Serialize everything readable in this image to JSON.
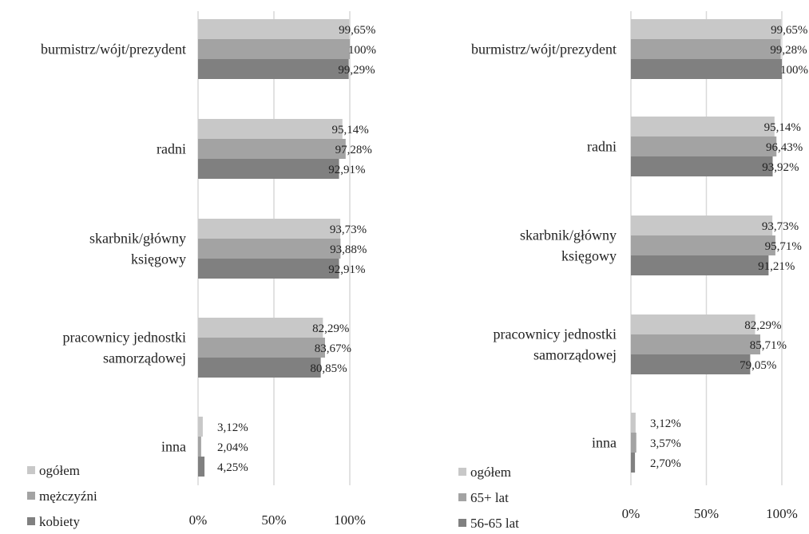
{
  "chart_data": [
    {
      "type": "bar",
      "orientation": "horizontal",
      "categories": [
        "burmistrz/wójt/prezydent",
        "radni",
        "skarbnik/główny księgowy",
        "pracownicy jednostki samorządowej",
        "inna"
      ],
      "category_lines": [
        [
          "burmistrz/wójt/prezydent"
        ],
        [
          "radni"
        ],
        [
          "skarbnik/główny",
          "księgowy"
        ],
        [
          "pracownicy jednostki",
          "samorządowej"
        ],
        [
          "inna"
        ]
      ],
      "series": [
        {
          "name": "ogółem",
          "color": "#c8c8c8",
          "values": [
            99.65,
            95.14,
            93.73,
            82.29,
            3.12
          ],
          "labels": [
            "99,65%",
            "95,14%",
            "93,73%",
            "82,29%",
            "3,12%"
          ]
        },
        {
          "name": "mężczyźni",
          "color": "#a3a3a3",
          "values": [
            100,
            97.28,
            93.88,
            83.67,
            2.04
          ],
          "labels": [
            "100%",
            "97,28%",
            "93,88%",
            "83,67%",
            "2,04%"
          ]
        },
        {
          "name": "kobiety",
          "color": "#808080",
          "values": [
            99.29,
            92.91,
            92.91,
            80.85,
            4.25
          ],
          "labels": [
            "99,29%",
            "92,91%",
            "92,91%",
            "80,85%",
            "4,25%"
          ]
        }
      ],
      "xlim": [
        0,
        100
      ],
      "xticks": [
        "0%",
        "50%",
        "100%"
      ],
      "grid": true,
      "legend_position": "bottom-left"
    },
    {
      "type": "bar",
      "orientation": "horizontal",
      "categories": [
        "burmistrz/wójt/prezydent",
        "radni",
        "skarbnik/główny księgowy",
        "pracownicy jednostki samorządowej",
        "inna"
      ],
      "category_lines": [
        [
          "burmistrz/wójt/prezydent"
        ],
        [
          "radni"
        ],
        [
          "skarbnik/główny",
          "księgowy"
        ],
        [
          "pracownicy jednostki",
          "samorządowej"
        ],
        [
          "inna"
        ]
      ],
      "series": [
        {
          "name": "ogółem",
          "color": "#c8c8c8",
          "values": [
            99.65,
            95.14,
            93.73,
            82.29,
            3.12
          ],
          "labels": [
            "99,65%",
            "95,14%",
            "93,73%",
            "82,29%",
            "3,12%"
          ]
        },
        {
          "name": "65+ lat",
          "color": "#a3a3a3",
          "values": [
            99.28,
            96.43,
            95.71,
            85.71,
            3.57
          ],
          "labels": [
            "99,28%",
            "96,43%",
            "95,71%",
            "85,71%",
            "3,57%"
          ]
        },
        {
          "name": "56-65 lat",
          "color": "#808080",
          "values": [
            100,
            93.92,
            91.21,
            79.05,
            2.7
          ],
          "labels": [
            "100%",
            "93,92%",
            "91,21%",
            "79,05%",
            "2,70%"
          ]
        }
      ],
      "xlim": [
        0,
        100
      ],
      "xticks": [
        "0%",
        "50%",
        "100%"
      ],
      "grid": true,
      "legend_position": "bottom-left"
    }
  ]
}
